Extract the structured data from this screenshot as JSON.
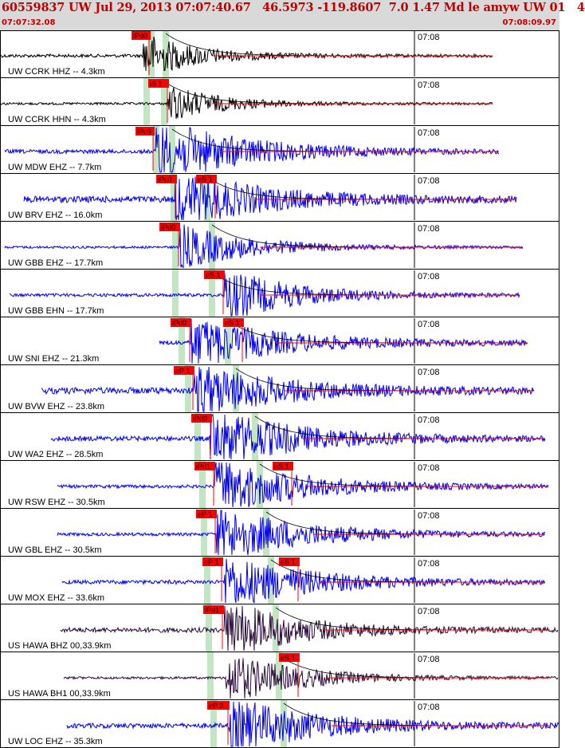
{
  "header": {
    "title": "60559837 UW Jul 29, 2013 07:07:40.67   46.5973 -119.8607  7.0 1.47 Md le amyw UW 01   4",
    "start_time": "07:07:32.08",
    "end_time": "07:08:09.97"
  },
  "minute_tick_label": "07:08",
  "colors": {
    "velocity_trace": "#0000ee",
    "broadband_trace": "#2a0a3a",
    "short_trace": "#000000",
    "pick": "#ff0000",
    "window": "#b8e0b8",
    "envelope": "#000000"
  },
  "traces": [
    {
      "label": "UW CCRK HHZ -- 4.3km",
      "color": "short",
      "picks": [
        {
          "text": "iPd0",
          "type": "P"
        }
      ]
    },
    {
      "label": "UW CCRK HHN -- 4.3km",
      "color": "short",
      "picks": [
        {
          "text": "iS 1",
          "type": "S"
        }
      ]
    },
    {
      "label": "UW MDW EHZ -- 7.7km",
      "color": "velocity",
      "picks": [
        {
          "text": "iPc0",
          "type": "P"
        }
      ]
    },
    {
      "label": "UW BRV EHZ -- 16.0km",
      "color": "velocity",
      "picks": [
        {
          "text": "iPc0",
          "type": "P"
        },
        {
          "text": "eS 1",
          "type": "S"
        }
      ]
    },
    {
      "label": "UW GBB EHZ -- 17.7km",
      "color": "velocity",
      "picks": [
        {
          "text": "iPd0",
          "type": "P"
        }
      ]
    },
    {
      "label": "UW GBB EHN -- 17.7km",
      "color": "velocity",
      "picks": [
        {
          "text": "eS 1",
          "type": "S"
        }
      ]
    },
    {
      "label": "UW SNI EHZ -- 21.3km",
      "color": "velocity",
      "picks": [
        {
          "text": "iPd0",
          "type": "P"
        },
        {
          "text": "eS 1",
          "type": "S"
        }
      ]
    },
    {
      "label": "UW BVW EHZ -- 23.8km",
      "color": "velocity",
      "picks": [
        {
          "text": "eP 1",
          "type": "P"
        }
      ]
    },
    {
      "label": "UW WA2 EHZ -- 28.5km",
      "color": "velocity",
      "picks": [
        {
          "text": "iPd0",
          "type": "P"
        }
      ]
    },
    {
      "label": "UW RSW EHZ -- 30.5km",
      "color": "velocity",
      "picks": [
        {
          "text": "iPd1",
          "type": "P"
        },
        {
          "text": "eS 1",
          "type": "S"
        }
      ]
    },
    {
      "label": "UW GBL EHZ -- 30.5km",
      "color": "velocity",
      "picks": [
        {
          "text": "eP 1",
          "type": "P"
        }
      ]
    },
    {
      "label": "UW MOX EHZ -- 33.6km",
      "color": "velocity",
      "picks": [
        {
          "text": "eP 1",
          "type": "P"
        },
        {
          "text": "eS 1",
          "type": "S"
        }
      ]
    },
    {
      "label": "US HAWA BHZ 00,33.9km",
      "color": "broadband",
      "picks": [
        {
          "text": "iPd1",
          "type": "P"
        }
      ]
    },
    {
      "label": "US HAWA BH1 00,33.9km",
      "color": "broadband",
      "picks": [
        {
          "text": "eS 1",
          "type": "S"
        }
      ]
    },
    {
      "label": "UW LOC EHZ -- 35.3km",
      "color": "velocity",
      "picks": [
        {
          "text": "eP 2",
          "type": "P"
        }
      ]
    }
  ]
}
